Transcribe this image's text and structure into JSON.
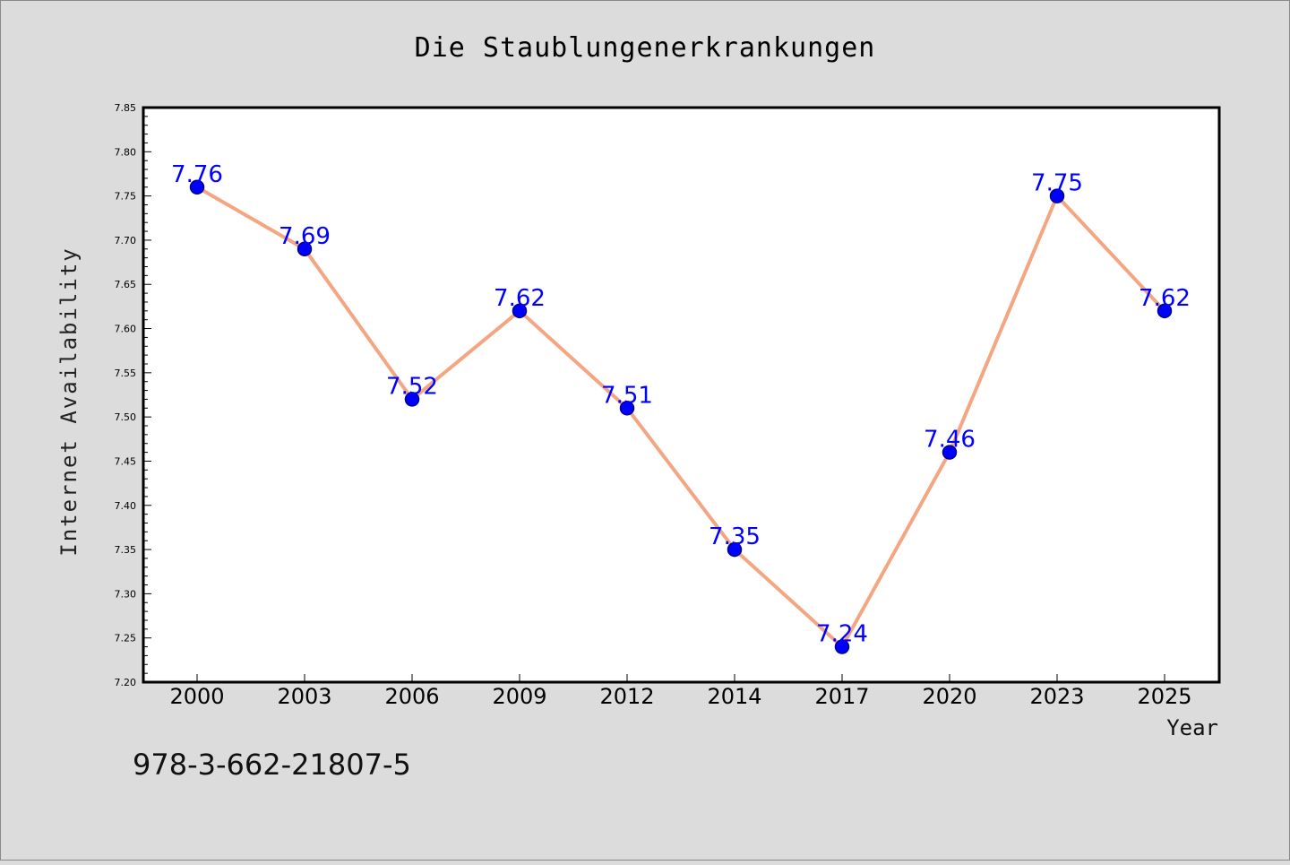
{
  "chart_data": {
    "type": "line",
    "title": "Die Staublungenerkrankungen",
    "xlabel": "Year",
    "ylabel": "Internet Availability",
    "categories": [
      "2000",
      "2003",
      "2006",
      "2009",
      "2012",
      "2014",
      "2017",
      "2020",
      "2023",
      "2025"
    ],
    "series": [
      {
        "values": [
          7.76,
          7.69,
          7.52,
          7.62,
          7.51,
          7.35,
          7.24,
          7.46,
          7.75,
          7.62
        ],
        "line_color": "#f4a582",
        "marker_color": "#0000ff"
      }
    ],
    "data_labels": [
      "7.76",
      "7.69",
      "7.52",
      "7.62",
      "7.51",
      "7.35",
      "7.24",
      "7.46",
      "7.75",
      "7.62"
    ],
    "data_label_color": "#0000ff",
    "ylim": [
      7.2,
      7.85
    ],
    "yticks": [
      "7.20",
      "7.25",
      "7.30",
      "7.35",
      "7.40",
      "7.45",
      "7.50",
      "7.55",
      "7.60",
      "7.65",
      "7.70",
      "7.75",
      "7.80",
      "7.85"
    ],
    "grid": false,
    "legend": "none"
  },
  "footer": {
    "isbn": "978-3-662-21807-5"
  },
  "colors": {
    "background": "#dcdcdc",
    "plot_background": "#ffffff"
  }
}
